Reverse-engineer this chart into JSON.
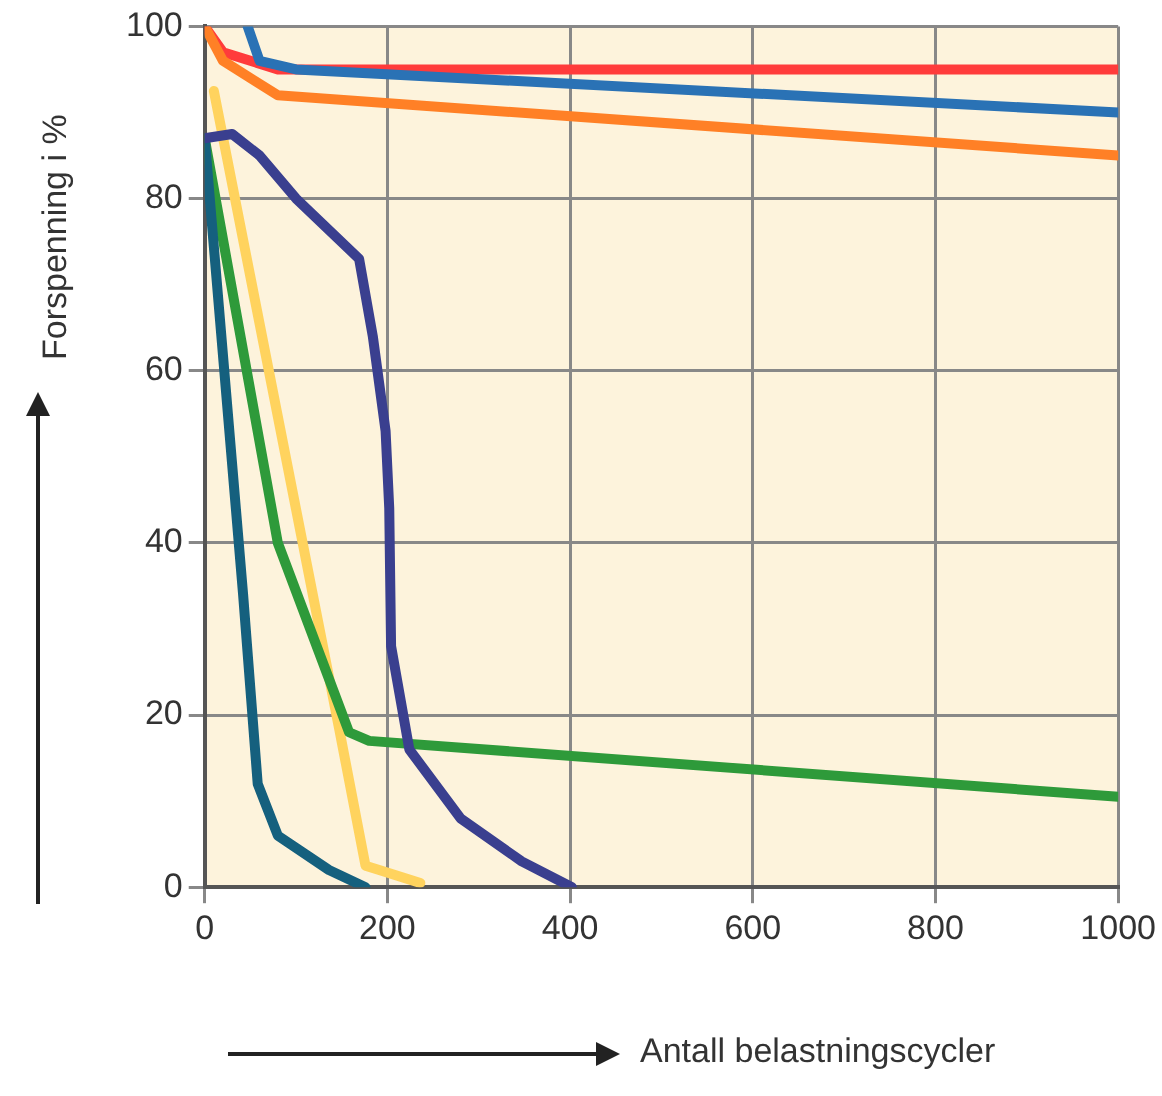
{
  "chart_data": {
    "type": "line",
    "xlabel": "Antall belastningscycler",
    "ylabel": "Forspenning i %",
    "xlim": [
      0,
      1000
    ],
    "ylim": [
      0,
      100
    ],
    "xticks": [
      0,
      200,
      400,
      600,
      800,
      1000
    ],
    "yticks": [
      0,
      20,
      40,
      60,
      80,
      100
    ],
    "grid": true,
    "line_style": "solid",
    "series": [
      {
        "color": "#2a72b5",
        "x": [
          47,
          60,
          100,
          1000
        ],
        "values": [
          100,
          96,
          95,
          90
        ]
      },
      {
        "color": "#ff8026",
        "x": [
          0,
          20,
          80,
          1000
        ],
        "values": [
          100,
          96,
          92,
          85
        ]
      },
      {
        "color": "#ff3b3b",
        "x": [
          0,
          20,
          80,
          1000
        ],
        "values": [
          100,
          97,
          95,
          95
        ]
      },
      {
        "color": "#3a3f8f",
        "x": [
          0,
          30,
          60,
          100,
          169,
          184,
          198,
          202,
          204,
          224,
          280,
          347,
          402
        ],
        "values": [
          87,
          87.5,
          85,
          80,
          73,
          64,
          53,
          44,
          28,
          16,
          8,
          3,
          0
        ]
      },
      {
        "color": "#15607e",
        "x": [
          0,
          42,
          58,
          80,
          136,
          176
        ],
        "values": [
          87,
          34,
          12,
          6,
          2,
          0
        ]
      },
      {
        "color": "#2e9a3a",
        "x": [
          0,
          80,
          158,
          180,
          1000
        ],
        "values": [
          87,
          40,
          18,
          17,
          10.5
        ]
      },
      {
        "color": "#ffd35e",
        "x": [
          10,
          147,
          176,
          191,
          236
        ],
        "values": [
          92.5,
          18.5,
          2.5,
          2,
          0.5
        ]
      }
    ]
  }
}
